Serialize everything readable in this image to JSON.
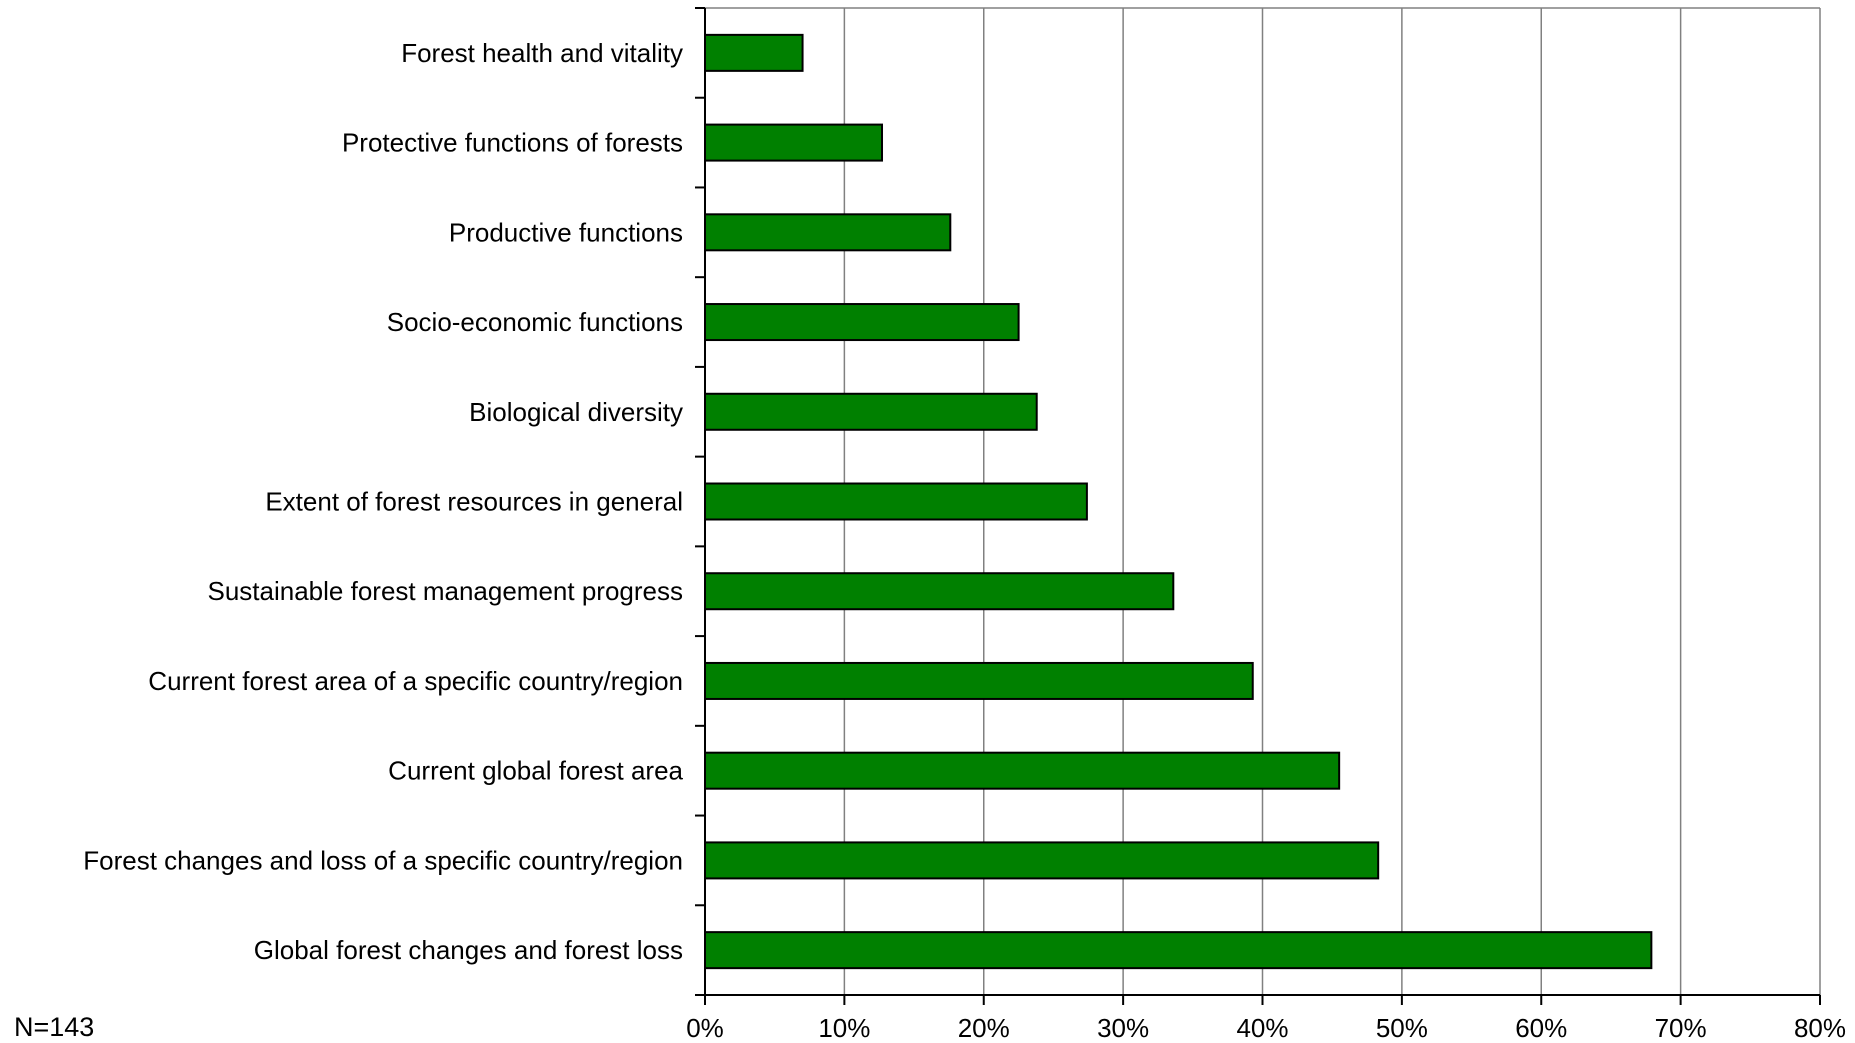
{
  "chart_data": {
    "type": "bar",
    "orientation": "horizontal",
    "categories": [
      "Forest health and vitality",
      "Protective functions of forests",
      "Productive functions",
      "Socio-economic functions",
      "Biological diversity",
      "Extent of forest resources in general",
      "Sustainable forest management progress",
      "Current forest area of a specific country/region",
      "Current global forest area",
      "Forest changes and loss of a specific country/region",
      "Global forest changes and forest loss"
    ],
    "values": [
      7.0,
      12.7,
      17.6,
      22.5,
      23.8,
      27.4,
      33.6,
      39.3,
      45.5,
      48.3,
      67.9
    ],
    "xlim": [
      0,
      80
    ],
    "xticks": [
      "0%",
      "10%",
      "20%",
      "30%",
      "40%",
      "50%",
      "60%",
      "70%",
      "80%"
    ],
    "xlabel": "",
    "ylabel": "",
    "title": "",
    "grid": "vertical",
    "bar_color": "#008000",
    "bar_edge_color": "#000000",
    "note": "N=143"
  }
}
